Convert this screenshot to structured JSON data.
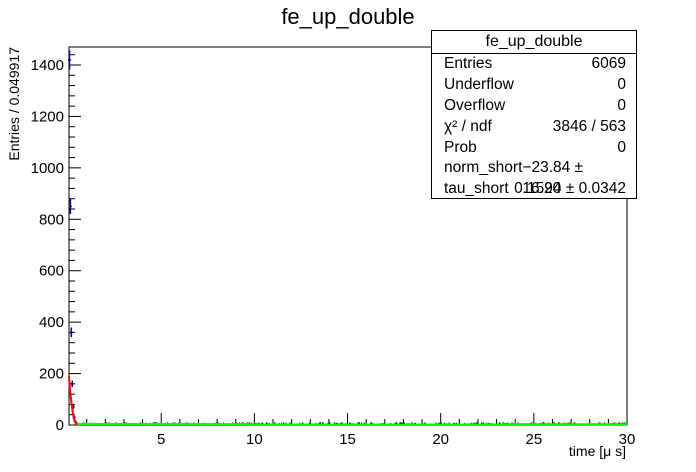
{
  "chart_data": {
    "type": "histogram",
    "title": "fe_up_double",
    "xlabel": "time [μ s]",
    "ylabel": "Entries / 0.049917",
    "xlim": [
      0.05,
      30
    ],
    "ylim": [
      0,
      1470
    ],
    "x_ticks": [
      5,
      10,
      15,
      20,
      25,
      30
    ],
    "y_ticks": [
      0,
      200,
      400,
      600,
      800,
      1000,
      1200,
      1400
    ],
    "bin_width": 0.049917,
    "histogram": {
      "x": [
        0.075,
        0.125,
        0.175,
        0.225,
        0.275,
        0.325,
        0.375,
        0.425,
        0.475,
        0.525,
        0.575,
        0.625,
        0.675,
        0.725,
        0.775,
        0.825
      ],
      "y": [
        1420,
        850,
        360,
        160,
        70,
        30,
        15,
        8,
        5,
        3,
        2,
        4,
        1,
        3,
        2,
        6
      ],
      "color": "#000080"
    },
    "fit_short": {
      "x": [
        0.05,
        0.1,
        0.15,
        0.2,
        0.25,
        0.3,
        0.35,
        0.4,
        0.45,
        0.5
      ],
      "y": [
        190,
        140,
        105,
        75,
        50,
        30,
        17,
        9,
        4,
        1
      ],
      "color": "#ff0000"
    },
    "fit_long": {
      "x": [
        0.5,
        30
      ],
      "y": [
        2,
        1
      ],
      "color": "#00ff00"
    },
    "grid": false
  },
  "stats": {
    "title": "fe_up_double",
    "rows": [
      {
        "label": "Entries",
        "value": "6069"
      },
      {
        "label": "Underflow",
        "value": "0"
      },
      {
        "label": "Overflow",
        "value": "0"
      },
      {
        "label": "χ² / ndf",
        "value": "3846 / 563"
      },
      {
        "label": "Prob",
        "value": "0"
      },
      {
        "label": "norm_short",
        "value": "−23.84 ± 16.20"
      },
      {
        "label": "tau_short",
        "value": "0.1594 ± 0.0342"
      }
    ]
  }
}
